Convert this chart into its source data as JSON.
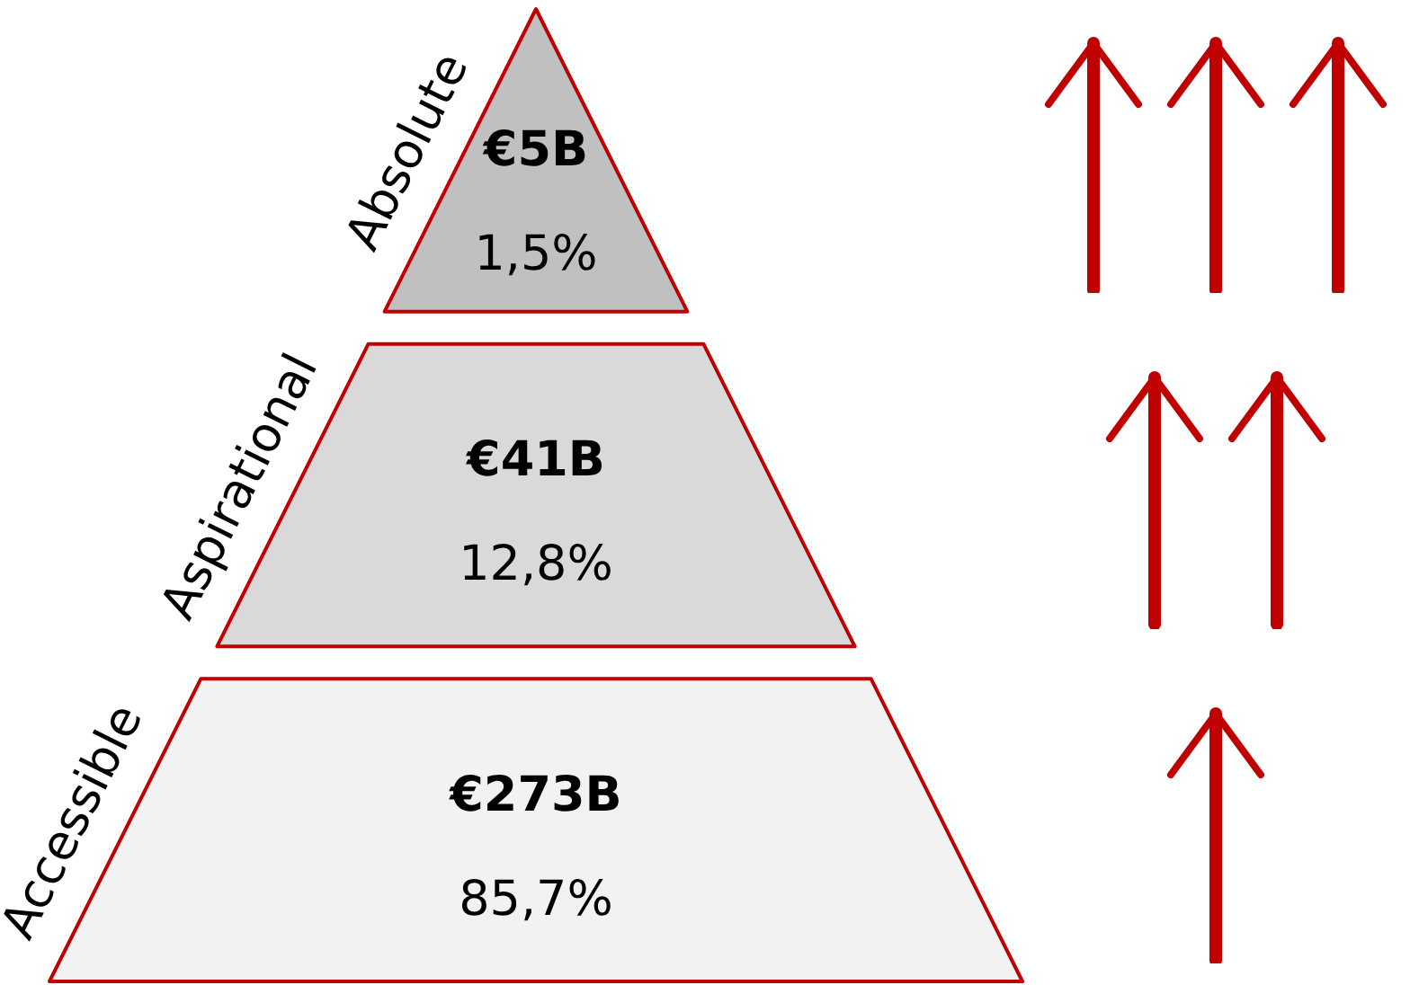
{
  "chart_data": {
    "type": "other",
    "categories": [
      "Absolute",
      "Aspirational",
      "Accessible"
    ],
    "series": [
      {
        "values": [
          5,
          41,
          273
        ],
        "value_labels": [
          "€5B",
          "€41B",
          "€273B"
        ],
        "colors": [
          "#c0c0c0",
          "#d9d9d9",
          "#f2f2f2"
        ]
      },
      {
        "values": [
          1.5,
          12.8,
          85.7
        ],
        "value_labels": [
          "1,5%",
          "12,8%",
          "85,7%"
        ]
      }
    ]
  }
}
